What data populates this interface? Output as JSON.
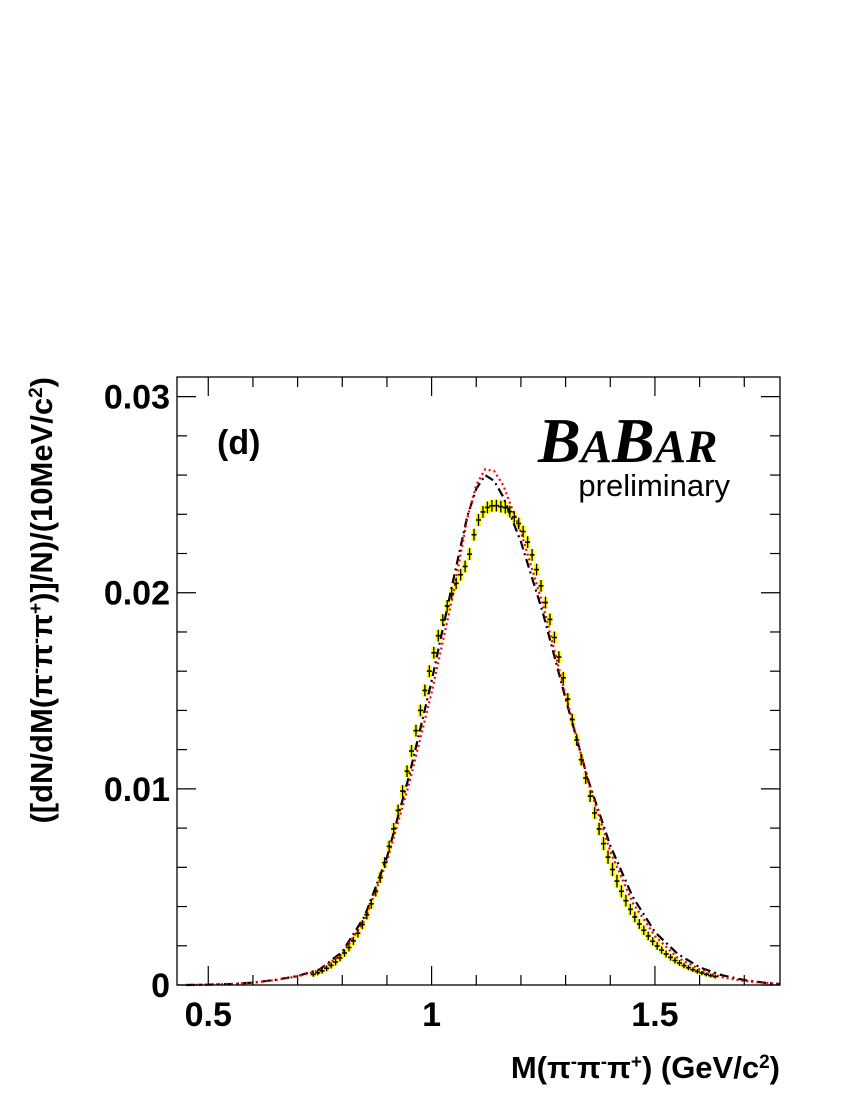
{
  "panel_label": "(d)",
  "experiment_logo": {
    "parts": [
      {
        "text": "B",
        "big": true
      },
      {
        "text": "A",
        "big": false
      },
      {
        "text": "B",
        "big": true
      },
      {
        "text": "AR",
        "big": false
      }
    ]
  },
  "preliminary_label": "preliminary",
  "chart_data": {
    "type": "scatter",
    "title": "",
    "xlabel": {
      "parts": [
        {
          "text": "M(π",
          "sup": false
        },
        {
          "text": "-",
          "sup": true
        },
        {
          "text": "π",
          "sup": false
        },
        {
          "text": "-",
          "sup": true
        },
        {
          "text": "π",
          "sup": false
        },
        {
          "text": "+",
          "sup": true
        },
        {
          "text": ") (GeV/c",
          "sup": false
        },
        {
          "text": "2",
          "sup": true
        },
        {
          "text": ")",
          "sup": false
        }
      ]
    },
    "ylabel": {
      "parts": [
        {
          "text": "([dN/dM(π",
          "sup": false
        },
        {
          "text": "-",
          "sup": true
        },
        {
          "text": "π",
          "sup": false
        },
        {
          "text": "-",
          "sup": true
        },
        {
          "text": "π",
          "sup": false
        },
        {
          "text": "+",
          "sup": true
        },
        {
          "text": ")]/N)/(10MeV/c",
          "sup": false
        },
        {
          "text": "2",
          "sup": true
        },
        {
          "text": ")",
          "sup": false
        }
      ]
    },
    "xlim": [
      0.43,
      1.78
    ],
    "ylim": [
      0,
      0.031
    ],
    "x_ticks": [
      {
        "value": 0.5,
        "label": "0.5"
      },
      {
        "value": 1.0,
        "label": "1"
      },
      {
        "value": 1.5,
        "label": "1.5"
      }
    ],
    "y_ticks": [
      {
        "value": 0,
        "label": "0"
      },
      {
        "value": 0.01,
        "label": "0.01"
      },
      {
        "value": 0.02,
        "label": "0.02"
      },
      {
        "value": 0.03,
        "label": "0.03"
      }
    ],
    "grid": false,
    "legend": "none",
    "series": [
      {
        "kind": "data_points",
        "color": "#000000",
        "error_band_color": "#ffff00",
        "x": [
          0.735,
          0.745,
          0.755,
          0.765,
          0.775,
          0.785,
          0.795,
          0.805,
          0.815,
          0.825,
          0.835,
          0.845,
          0.855,
          0.865,
          0.875,
          0.885,
          0.895,
          0.905,
          0.915,
          0.925,
          0.935,
          0.945,
          0.955,
          0.965,
          0.975,
          0.985,
          0.995,
          1.005,
          1.015,
          1.025,
          1.035,
          1.045,
          1.055,
          1.065,
          1.075,
          1.085,
          1.095,
          1.105,
          1.115,
          1.125,
          1.135,
          1.145,
          1.155,
          1.165,
          1.175,
          1.185,
          1.195,
          1.205,
          1.215,
          1.225,
          1.235,
          1.245,
          1.255,
          1.265,
          1.275,
          1.285,
          1.295,
          1.305,
          1.315,
          1.325,
          1.335,
          1.345,
          1.355,
          1.365,
          1.375,
          1.385,
          1.395,
          1.405,
          1.415,
          1.425,
          1.435,
          1.445,
          1.455,
          1.465,
          1.475,
          1.485,
          1.495,
          1.505,
          1.515,
          1.525,
          1.535,
          1.545,
          1.555,
          1.565,
          1.575,
          1.585,
          1.595,
          1.605,
          1.615,
          1.625,
          1.635
        ],
        "y": [
          0.00054,
          0.00062,
          0.00072,
          0.00085,
          0.001,
          0.00117,
          0.00138,
          0.00163,
          0.00191,
          0.00225,
          0.00264,
          0.00308,
          0.00358,
          0.00414,
          0.00477,
          0.00547,
          0.00624,
          0.00707,
          0.00796,
          0.0089,
          0.00989,
          0.0109,
          0.01193,
          0.01297,
          0.014,
          0.01502,
          0.016,
          0.01694,
          0.01781,
          0.01861,
          0.01933,
          0.01996,
          0.02048,
          0.02092,
          0.02134,
          0.02197,
          0.02296,
          0.02371,
          0.02412,
          0.02435,
          0.02443,
          0.02444,
          0.02439,
          0.02434,
          0.02414,
          0.02386,
          0.02353,
          0.02312,
          0.02258,
          0.02193,
          0.02118,
          0.02035,
          0.0195,
          0.01864,
          0.01772,
          0.01672,
          0.01566,
          0.01458,
          0.01353,
          0.01249,
          0.01149,
          0.01055,
          0.00963,
          0.00877,
          0.00796,
          0.00721,
          0.00652,
          0.00589,
          0.0053,
          0.00478,
          0.0043,
          0.00386,
          0.00347,
          0.00311,
          0.00279,
          0.0025,
          0.00223,
          0.00199,
          0.00178,
          0.00158,
          0.00141,
          0.00125,
          0.00112,
          0.00099,
          0.00088,
          0.00078,
          0.00069,
          0.00061,
          0.00054,
          0.00048,
          0.00043
        ],
        "yerr": [
          0.00012,
          0.00013,
          0.00014,
          0.00015,
          0.00016,
          0.00017,
          0.00018,
          0.00019,
          0.0002,
          0.00021,
          0.00022,
          0.00023,
          0.00024,
          0.00025,
          0.00026,
          0.00027,
          0.00028,
          0.00029,
          0.0003,
          0.0003,
          0.0003,
          0.0003,
          0.0003,
          0.0003,
          0.0003,
          0.0003,
          0.0003,
          0.0003,
          0.0003,
          0.0003,
          0.0003,
          0.0003,
          0.0003,
          0.0003,
          0.0003,
          0.0003,
          0.0003,
          0.0003,
          0.0003,
          0.0003,
          0.0003,
          0.0003,
          0.0003,
          0.0003,
          0.0003,
          0.0003,
          0.0003,
          0.0003,
          0.0003,
          0.0003,
          0.0003,
          0.0003,
          0.0003,
          0.0003,
          0.0003,
          0.0003,
          0.0003,
          0.0003,
          0.0003,
          0.0003,
          0.0003,
          0.0003,
          0.0003,
          0.0003,
          0.00032,
          0.00033,
          0.00034,
          0.00034,
          0.00033,
          0.00031,
          0.0003,
          0.00028,
          0.00027,
          0.00025,
          0.00024,
          0.00022,
          0.00021,
          0.0002,
          0.00019,
          0.00018,
          0.00017,
          0.00016,
          0.00015,
          0.00014,
          0.00013,
          0.00012,
          0.00012,
          0.00011,
          0.0001,
          0.0001,
          0.0001
        ]
      },
      {
        "kind": "curve",
        "color": "#000000",
        "dash": "dash-dot",
        "x": [
          0.45,
          0.5,
          0.55,
          0.6,
          0.65,
          0.7,
          0.75,
          0.8,
          0.85,
          0.9,
          0.95,
          1.0,
          1.05,
          1.08,
          1.1,
          1.12,
          1.14,
          1.16,
          1.2,
          1.25,
          1.3,
          1.35,
          1.4,
          1.45,
          1.5,
          1.55,
          1.6,
          1.65,
          1.7,
          1.75,
          1.78
        ],
        "y": [
          0.0,
          2e-05,
          5e-05,
          0.00012,
          0.00026,
          0.00046,
          0.0008,
          0.0017,
          0.0035,
          0.0065,
          0.0107,
          0.0155,
          0.0208,
          0.0239,
          0.0253,
          0.026,
          0.0257,
          0.0249,
          0.0226,
          0.0189,
          0.0146,
          0.0105,
          0.0071,
          0.0045,
          0.0027,
          0.0016,
          0.0009,
          0.0005,
          0.00025,
          0.0001,
          5e-05
        ]
      },
      {
        "kind": "curve",
        "color": "#ff0000",
        "dash": "dotted",
        "x": [
          0.45,
          0.5,
          0.55,
          0.6,
          0.65,
          0.7,
          0.75,
          0.8,
          0.85,
          0.9,
          0.95,
          1.0,
          1.05,
          1.08,
          1.1,
          1.12,
          1.14,
          1.16,
          1.2,
          1.25,
          1.3,
          1.35,
          1.4,
          1.45,
          1.5,
          1.55,
          1.6,
          1.65,
          1.7,
          1.75,
          1.78
        ],
        "y": [
          0.0,
          2e-05,
          5e-05,
          0.00012,
          0.00025,
          0.00044,
          0.00076,
          0.0016,
          0.0033,
          0.0063,
          0.0103,
          0.0149,
          0.0201,
          0.0238,
          0.0255,
          0.0263,
          0.0262,
          0.0255,
          0.0231,
          0.0193,
          0.0148,
          0.0104,
          0.0068,
          0.0042,
          0.0025,
          0.0014,
          0.0008,
          0.0004,
          0.0002,
          0.0001,
          5e-05
        ]
      }
    ]
  }
}
